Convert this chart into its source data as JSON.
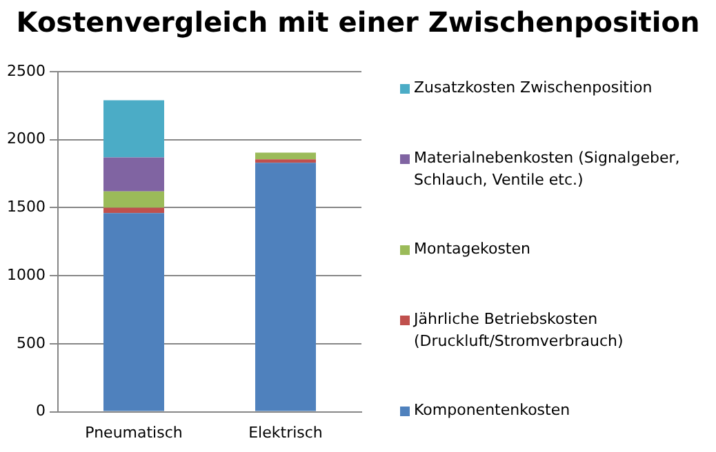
{
  "chart_data": {
    "type": "bar",
    "title": "Kostenvergleich mit einer Zwischenposition",
    "categories": [
      "Pneumatisch",
      "Elektrisch"
    ],
    "stacked": true,
    "ylim": [
      0,
      2500
    ],
    "yticks": [
      0,
      500,
      1000,
      1500,
      2000,
      2500
    ],
    "grid": "y",
    "legend": "right",
    "series": [
      {
        "name": "Komponentenkosten",
        "color": "#4f81bd",
        "values": [
          1460,
          1830
        ]
      },
      {
        "name": "Jährliche Betriebskosten (Druckluft/Stromverbrauch)",
        "color": "#c0504d",
        "values": [
          40,
          25
        ]
      },
      {
        "name": "Montagekosten",
        "color": "#9bbb59",
        "values": [
          120,
          50
        ]
      },
      {
        "name": "Materialnebenkosten (Signalgeber, Schlauch, Ventile etc.)",
        "color": "#8064a2",
        "values": [
          250,
          0
        ]
      },
      {
        "name": "Zusatzkosten Zwischenposition",
        "color": "#4bacc6",
        "values": [
          420,
          0
        ]
      }
    ]
  }
}
